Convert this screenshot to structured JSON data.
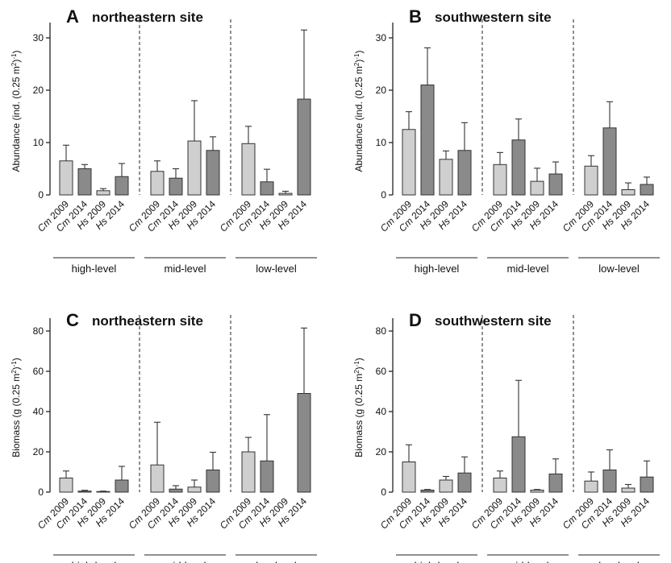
{
  "colors": {
    "light": "#cfcfcf",
    "dark": "#8a8a8a"
  },
  "chart_data": [
    {
      "type": "bar",
      "panel": "A",
      "title": "northeastern site",
      "ylabel_main": "Abundance (ind. (0.25 m",
      "ylabel_sup1": "2",
      "ylabel_mid": ")",
      "ylabel_sup2": "-1",
      "ylabel_end": ")",
      "ylim": [
        0,
        32
      ],
      "yticks": [
        0,
        10,
        20,
        30
      ],
      "groups": [
        "high-level",
        "mid-level",
        "low-level"
      ],
      "categories": [
        {
          "sp": "Cm",
          "yr": " 2009"
        },
        {
          "sp": "Cm",
          "yr": " 2014"
        },
        {
          "sp": "Hs",
          "yr": " 2009"
        },
        {
          "sp": "Hs",
          "yr": " 2014"
        }
      ],
      "values": [
        [
          6.5,
          5.0,
          0.8,
          3.5
        ],
        [
          4.5,
          3.2,
          10.3,
          8.5
        ],
        [
          9.8,
          2.5,
          0.3,
          18.3
        ]
      ],
      "errors": [
        [
          3.0,
          0.8,
          0.4,
          2.5
        ],
        [
          2.0,
          1.8,
          7.7,
          2.6
        ],
        [
          3.3,
          2.4,
          0.4,
          13.2
        ]
      ]
    },
    {
      "type": "bar",
      "panel": "B",
      "title": "southwestern site",
      "ylabel_main": "Abundance (ind. (0.25 m",
      "ylabel_sup1": "2",
      "ylabel_mid": ")",
      "ylabel_sup2": "-1",
      "ylabel_end": ")",
      "ylim": [
        0,
        32
      ],
      "yticks": [
        0,
        10,
        20,
        30
      ],
      "groups": [
        "high-level",
        "mid-level",
        "low-level"
      ],
      "categories": [
        {
          "sp": "Cm",
          "yr": " 2009"
        },
        {
          "sp": "Cm",
          "yr": " 2014"
        },
        {
          "sp": "Hs",
          "yr": " 2009"
        },
        {
          "sp": "Hs",
          "yr": " 2014"
        }
      ],
      "values": [
        [
          12.5,
          21.0,
          6.8,
          8.5
        ],
        [
          5.8,
          10.5,
          2.6,
          4.0
        ],
        [
          5.5,
          12.8,
          1.0,
          2.0
        ]
      ],
      "errors": [
        [
          3.4,
          7.1,
          1.6,
          5.3
        ],
        [
          2.3,
          4.0,
          2.5,
          2.3
        ],
        [
          2.0,
          5.0,
          1.3,
          1.4
        ]
      ]
    },
    {
      "type": "bar",
      "panel": "C",
      "title": "northeastern site",
      "ylabel_main": "Biomass (g (0.25 m",
      "ylabel_sup1": "2",
      "ylabel_mid": ")",
      "ylabel_sup2": "-1",
      "ylabel_end": ")",
      "ylim": [
        0,
        84
      ],
      "yticks": [
        0,
        20,
        40,
        60,
        80
      ],
      "groups": [
        "high-level",
        "mid-level",
        "low-level"
      ],
      "categories": [
        {
          "sp": "Cm",
          "yr": " 2009"
        },
        {
          "sp": "Cm",
          "yr": " 2014"
        },
        {
          "sp": "Hs",
          "yr": " 2009"
        },
        {
          "sp": "Hs",
          "yr": " 2014"
        }
      ],
      "values": [
        [
          7.0,
          0.5,
          0.3,
          6.0
        ],
        [
          13.5,
          1.5,
          2.5,
          11.0
        ],
        [
          20.0,
          15.5,
          0.0,
          49.0
        ]
      ],
      "errors": [
        [
          3.5,
          0.4,
          0.2,
          6.8
        ],
        [
          21.2,
          1.7,
          3.5,
          8.8
        ],
        [
          7.2,
          23.0,
          0.0,
          32.5
        ]
      ]
    },
    {
      "type": "bar",
      "panel": "D",
      "title": "southwestern site",
      "ylabel_main": "Biomass (g (0.25 m",
      "ylabel_sup1": "2",
      "ylabel_mid": ")",
      "ylabel_sup2": "-1",
      "ylabel_end": ")",
      "ylim": [
        0,
        84
      ],
      "yticks": [
        0,
        20,
        40,
        60,
        80
      ],
      "groups": [
        "high-level",
        "mid-level",
        "low-level"
      ],
      "categories": [
        {
          "sp": "Cm",
          "yr": " 2009"
        },
        {
          "sp": "Cm",
          "yr": " 2014"
        },
        {
          "sp": "Hs",
          "yr": " 2009"
        },
        {
          "sp": "Hs",
          "yr": " 2014"
        }
      ],
      "values": [
        [
          15.0,
          1.0,
          6.0,
          9.5
        ],
        [
          7.0,
          27.5,
          1.0,
          9.0
        ],
        [
          5.5,
          11.0,
          2.0,
          7.5
        ]
      ],
      "errors": [
        [
          8.5,
          0.3,
          1.8,
          8.0
        ],
        [
          3.5,
          28.0,
          0.3,
          7.5
        ],
        [
          4.5,
          10.0,
          1.8,
          8.0
        ]
      ]
    }
  ]
}
